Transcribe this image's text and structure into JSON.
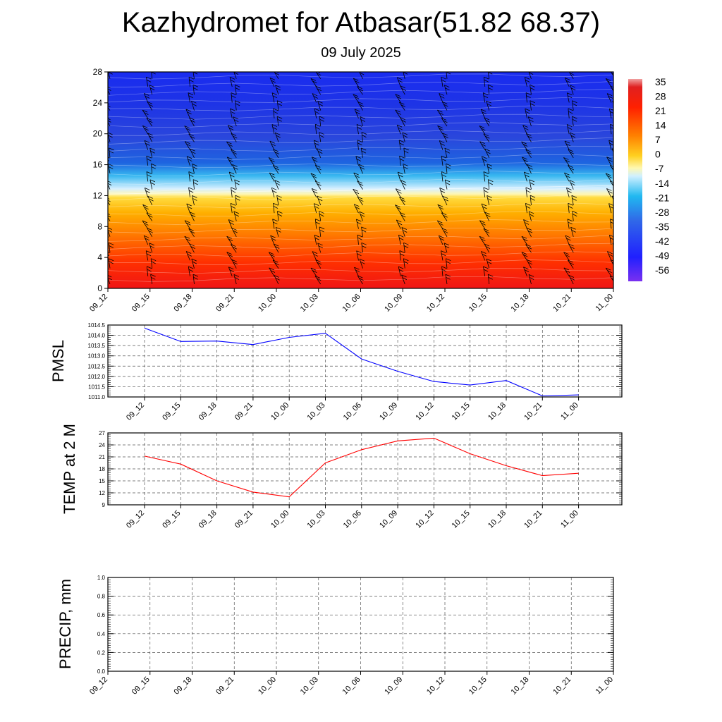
{
  "title": "Kazhydromet for Atbasar(51.82 68.37)",
  "subtitle": "09 July 2025",
  "chart_data": [
    {
      "type": "heatmap",
      "title": "",
      "ylabel": "",
      "yticks": [
        "0",
        "4",
        "8",
        "12",
        "16",
        "20",
        "24",
        "28"
      ],
      "ylim": [
        0,
        28
      ],
      "xticks": [
        "09_12",
        "09_15",
        "09_18",
        "09_21",
        "10_00",
        "10_03",
        "10_06",
        "10_09",
        "10_12",
        "10_15",
        "10_18",
        "10_21",
        "11_00"
      ],
      "colorbar_labels": [
        "35",
        "28",
        "21",
        "14",
        "7",
        "0",
        "-7",
        "-14",
        "-21",
        "-28",
        "-35",
        "-42",
        "-49",
        "-56"
      ],
      "colorbar_range": [
        -63,
        42
      ],
      "freezing_level_y": [
        12.2,
        12.3,
        12.4,
        12.5,
        12.6,
        12.6,
        12.7,
        12.8,
        12.9,
        13.0,
        13.1,
        13.2,
        13.3
      ],
      "wind_barbs": true
    },
    {
      "type": "line",
      "ylabel": "PMSL",
      "x": [
        "09_12",
        "09_15",
        "09_18",
        "09_21",
        "10_00",
        "10_03",
        "10_06",
        "10_09",
        "10_12",
        "10_15",
        "10_18",
        "10_21",
        "11_00"
      ],
      "yticks": [
        "1011.0",
        "1011.5",
        "1012.0",
        "1012.5",
        "1013.0",
        "1013.5",
        "1014.0",
        "1014.5"
      ],
      "ylim": [
        1011.0,
        1014.5
      ],
      "series": [
        {
          "values": [
            1014.35,
            1013.7,
            1013.72,
            1013.55,
            1013.9,
            1014.1,
            1012.85,
            1012.25,
            1011.75,
            1011.58,
            1011.8,
            1011.05,
            1011.1
          ],
          "color": "#0000ff"
        }
      ],
      "grid": true
    },
    {
      "type": "line",
      "ylabel": "TEMP at 2 M",
      "x": [
        "09_12",
        "09_15",
        "09_18",
        "09_21",
        "10_00",
        "10_03",
        "10_06",
        "10_09",
        "10_12",
        "10_15",
        "10_18",
        "10_21",
        "11_00"
      ],
      "yticks": [
        "9",
        "12",
        "15",
        "18",
        "21",
        "24",
        "27"
      ],
      "ylim": [
        9,
        27
      ],
      "series": [
        {
          "values": [
            21.2,
            19.2,
            15.0,
            12.2,
            11.0,
            19.5,
            22.8,
            25.0,
            25.7,
            21.8,
            18.8,
            16.3,
            16.9
          ],
          "color": "#ff0000"
        }
      ],
      "grid": true
    },
    {
      "type": "line",
      "ylabel": "PRECIP, mm",
      "x": [
        "09_12",
        "09_15",
        "09_18",
        "09_21",
        "10_00",
        "10_03",
        "10_06",
        "10_09",
        "10_12",
        "10_15",
        "10_18",
        "10_21",
        "11_00"
      ],
      "yticks": [
        "0.0",
        "0.2",
        "0.4",
        "0.6",
        "0.8",
        "1.0"
      ],
      "ylim": [
        0,
        1
      ],
      "series": [
        {
          "values": [
            0,
            0,
            0,
            0,
            0,
            0,
            0,
            0,
            0,
            0,
            0,
            0,
            0
          ],
          "color": "#006400"
        }
      ],
      "grid": true
    }
  ]
}
